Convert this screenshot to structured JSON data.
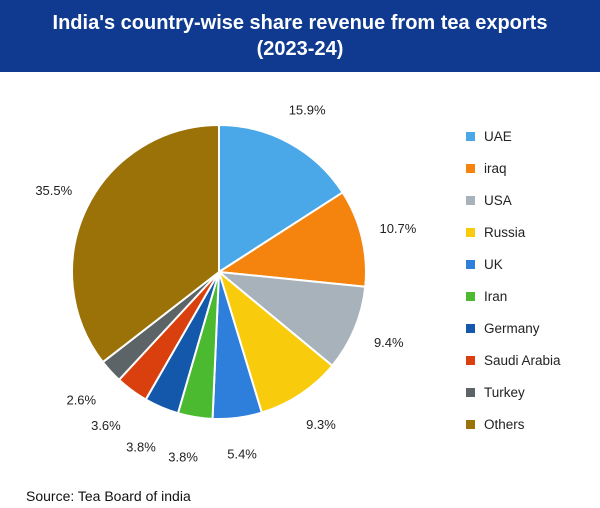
{
  "header": {
    "title_line1": "India's country-wise share revenue from tea exports",
    "title_line2": "(2023-24)"
  },
  "chart_data": {
    "type": "pie",
    "title": "India's country-wise share revenue from tea exports (2023-24)",
    "categories": [
      "UAE",
      "iraq",
      "USA",
      "Russia",
      "UK",
      "Iran",
      "Germany",
      "Saudi Arabia",
      "Turkey",
      "Others"
    ],
    "values": [
      15.9,
      10.7,
      9.4,
      9.3,
      5.4,
      3.8,
      3.8,
      3.6,
      2.6,
      35.5
    ],
    "value_labels": [
      "15.9%",
      "10.7%",
      "9.4%",
      "9.3%",
      "5.4%",
      "3.8%",
      "3.8%",
      "3.6%",
      "2.6%",
      "35.5%"
    ],
    "colors": [
      "#4aa8e8",
      "#f5840f",
      "#a8b2ba",
      "#f8cc0c",
      "#2e7fdc",
      "#4cba30",
      "#1458ab",
      "#d9400d",
      "#5d6468",
      "#9a7208"
    ],
    "legend_position": "right"
  },
  "source": "Source: Tea Board of india"
}
